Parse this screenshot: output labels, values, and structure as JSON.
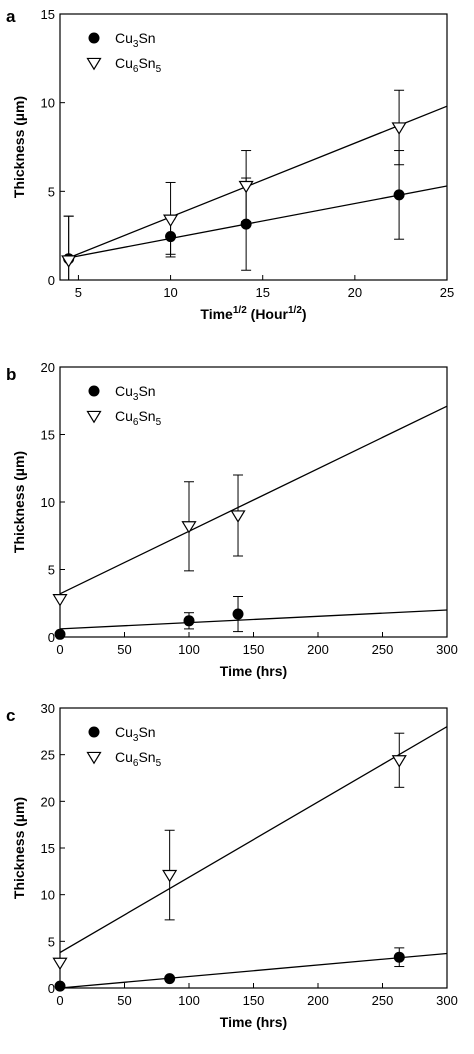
{
  "chart_data": [
    {
      "panel": "a",
      "type": "scatter",
      "xlabel_main": "Time",
      "xlabel_sup": "1/2",
      "xlabel_paren": " (Hour",
      "xlabel_sup2": "1/2",
      "xlabel_close": ")",
      "ylabel": "Thickness (µm)",
      "xlim": [
        4,
        25
      ],
      "ylim": [
        0,
        15
      ],
      "xticks": [
        5,
        10,
        15,
        20,
        25
      ],
      "yticks": [
        0,
        5,
        10,
        15
      ],
      "legend_position": "top-left",
      "series": [
        {
          "name_main": "Cu",
          "name_sub1": "3",
          "name_mid": "Sn",
          "name_sub2": "",
          "marker": "filled-circle",
          "x": [
            4.47,
            10,
            14.1,
            22.4
          ],
          "y": [
            1.2,
            2.45,
            3.15,
            4.8
          ],
          "err": [
            2.4,
            1.0,
            2.6,
            2.5
          ],
          "fit": [
            [
              4.47,
              1.25
            ],
            [
              25,
              5.3
            ]
          ]
        },
        {
          "name_main": "Cu",
          "name_sub1": "6",
          "name_mid": "Sn",
          "name_sub2": "5",
          "marker": "open-triangle-down",
          "x": [
            4.47,
            10,
            14.1,
            22.4
          ],
          "y": [
            1.1,
            3.4,
            5.3,
            8.6
          ],
          "err": [
            2.5,
            2.1,
            2.0,
            2.1
          ],
          "fit": [
            [
              4.47,
              1.25
            ],
            [
              25,
              9.8
            ]
          ]
        }
      ]
    },
    {
      "panel": "b",
      "type": "scatter",
      "xlabel": "Time (hrs)",
      "ylabel": "Thickness (µm)",
      "xlim": [
        0,
        300
      ],
      "ylim": [
        0,
        20
      ],
      "xticks": [
        0,
        50,
        100,
        150,
        200,
        250,
        300
      ],
      "yticks": [
        0,
        5,
        10,
        15,
        20
      ],
      "legend_position": "top-left",
      "series": [
        {
          "name_main": "Cu",
          "name_sub1": "3",
          "name_mid": "Sn",
          "name_sub2": "",
          "marker": "filled-circle",
          "x": [
            0,
            100,
            138
          ],
          "y": [
            0.2,
            1.2,
            1.7
          ],
          "err": [
            0,
            0.6,
            1.3
          ],
          "fit": [
            [
              0,
              0.6
            ],
            [
              300,
              2.0
            ]
          ]
        },
        {
          "name_main": "Cu",
          "name_sub1": "6",
          "name_mid": "Sn",
          "name_sub2": "5",
          "marker": "open-triangle-down",
          "x": [
            0,
            100,
            138
          ],
          "y": [
            2.8,
            8.2,
            9.0
          ],
          "err": [
            0,
            3.3,
            3.0
          ],
          "fit": [
            [
              0,
              3.2
            ],
            [
              300,
              17.1
            ]
          ]
        }
      ]
    },
    {
      "panel": "c",
      "type": "scatter",
      "xlabel": "Time (hrs)",
      "ylabel": "Thickness (µm)",
      "xlim": [
        0,
        300
      ],
      "ylim": [
        0,
        30
      ],
      "xticks": [
        0,
        50,
        100,
        150,
        200,
        250,
        300
      ],
      "yticks": [
        0,
        5,
        10,
        15,
        20,
        25,
        30
      ],
      "legend_position": "top-left",
      "series": [
        {
          "name_main": "Cu",
          "name_sub1": "3",
          "name_mid": "Sn",
          "name_sub2": "",
          "marker": "filled-circle",
          "x": [
            0,
            85,
            263
          ],
          "y": [
            0.2,
            1.0,
            3.3
          ],
          "err": [
            0,
            0,
            1.0
          ],
          "fit": [
            [
              0,
              0
            ],
            [
              300,
              3.7
            ]
          ]
        },
        {
          "name_main": "Cu",
          "name_sub1": "6",
          "name_mid": "Sn",
          "name_sub2": "5",
          "marker": "open-triangle-down",
          "x": [
            0,
            85,
            263
          ],
          "y": [
            2.7,
            12.1,
            24.4
          ],
          "err": [
            0,
            4.8,
            2.9
          ],
          "fit": [
            [
              0,
              3.8
            ],
            [
              300,
              28.0
            ]
          ]
        }
      ]
    }
  ],
  "colors": {
    "ink": "#000000",
    "background": "#ffffff",
    "open_marker_fill": "#ffffff"
  }
}
